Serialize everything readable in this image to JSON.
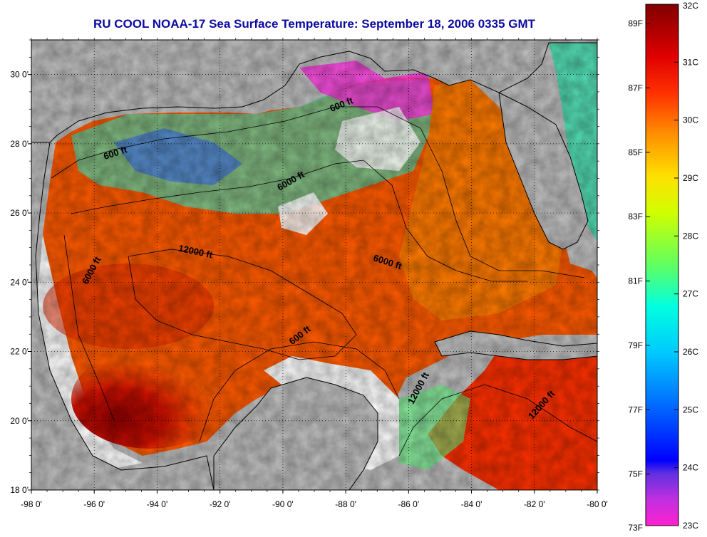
{
  "title": "RU COOL  NOAA-17  Sea Surface Temperature:  September 18, 2006 0335 GMT",
  "map": {
    "lon_range": [
      -98,
      -80
    ],
    "lat_range": [
      18,
      31
    ],
    "lon_ticks": [
      {
        "value": -98,
        "label": "-98 0'"
      },
      {
        "value": -96,
        "label": "-96 0'"
      },
      {
        "value": -94,
        "label": "-94 0'"
      },
      {
        "value": -92,
        "label": "-92 0'"
      },
      {
        "value": -90,
        "label": "-90 0'"
      },
      {
        "value": -88,
        "label": "-88 0'"
      },
      {
        "value": -86,
        "label": "-86 0'"
      },
      {
        "value": -84,
        "label": "-84 0'"
      },
      {
        "value": -82,
        "label": "-82 0'"
      },
      {
        "value": -80,
        "label": "-80 0'"
      }
    ],
    "lat_ticks": [
      {
        "value": 18,
        "label": "18 0'"
      },
      {
        "value": 20,
        "label": "20 0'"
      },
      {
        "value": 22,
        "label": "22 0'"
      },
      {
        "value": 24,
        "label": "24 0'"
      },
      {
        "value": 26,
        "label": "26 0'"
      },
      {
        "value": 28,
        "label": "28 0'"
      },
      {
        "value": 30,
        "label": "30 0'"
      }
    ],
    "contour_labels": [
      {
        "text": "600 ft",
        "lon": -95.3,
        "lat": 27.65,
        "rotate": -18
      },
      {
        "text": "600 ft",
        "lon": -88.1,
        "lat": 29.05,
        "rotate": -22
      },
      {
        "text": "6000 ft",
        "lon": -89.7,
        "lat": 26.85,
        "rotate": -30
      },
      {
        "text": "12000 ft",
        "lon": -92.8,
        "lat": 24.8,
        "rotate": 12
      },
      {
        "text": "6000 ft",
        "lon": -96.0,
        "lat": 24.3,
        "rotate": -62
      },
      {
        "text": "6000 ft",
        "lon": -86.7,
        "lat": 24.5,
        "rotate": 18
      },
      {
        "text": "600 ft",
        "lon": -89.4,
        "lat": 22.4,
        "rotate": -38
      },
      {
        "text": "12000 ft",
        "lon": -85.6,
        "lat": 20.9,
        "rotate": -62
      },
      {
        "text": "12000 ft",
        "lon": -81.7,
        "lat": 20.4,
        "rotate": -48
      }
    ]
  },
  "colorbar": {
    "range_c": [
      23,
      32
    ],
    "celsius_labels": [
      {
        "value": 32,
        "label": "32C"
      },
      {
        "value": 31,
        "label": "31C"
      },
      {
        "value": 30,
        "label": "30C"
      },
      {
        "value": 29,
        "label": "29C"
      },
      {
        "value": 28,
        "label": "28C"
      },
      {
        "value": 27,
        "label": "27C"
      },
      {
        "value": 26,
        "label": "26C"
      },
      {
        "value": 25,
        "label": "25C"
      },
      {
        "value": 24,
        "label": "24C"
      },
      {
        "value": 23,
        "label": "23C"
      }
    ],
    "fahrenheit_labels": [
      {
        "value": 89,
        "label": "89F"
      },
      {
        "value": 87,
        "label": "87F"
      },
      {
        "value": 85,
        "label": "85F"
      },
      {
        "value": 83,
        "label": "83F"
      },
      {
        "value": 81,
        "label": "81F"
      },
      {
        "value": 79,
        "label": "79F"
      },
      {
        "value": 77,
        "label": "77F"
      },
      {
        "value": 75,
        "label": "75F"
      },
      {
        "value": 73,
        "label": "73F"
      }
    ],
    "colors": [
      "#ff20d0",
      "#8040c0",
      "#0000ff",
      "#0090ff",
      "#00ffff",
      "#60ff60",
      "#ffff00",
      "#ffa000",
      "#ff2000",
      "#c00000",
      "#800000"
    ]
  },
  "colors": {
    "land": "#c0c0c0",
    "no_data": "#ffffff",
    "title": "#0a0aa0"
  }
}
